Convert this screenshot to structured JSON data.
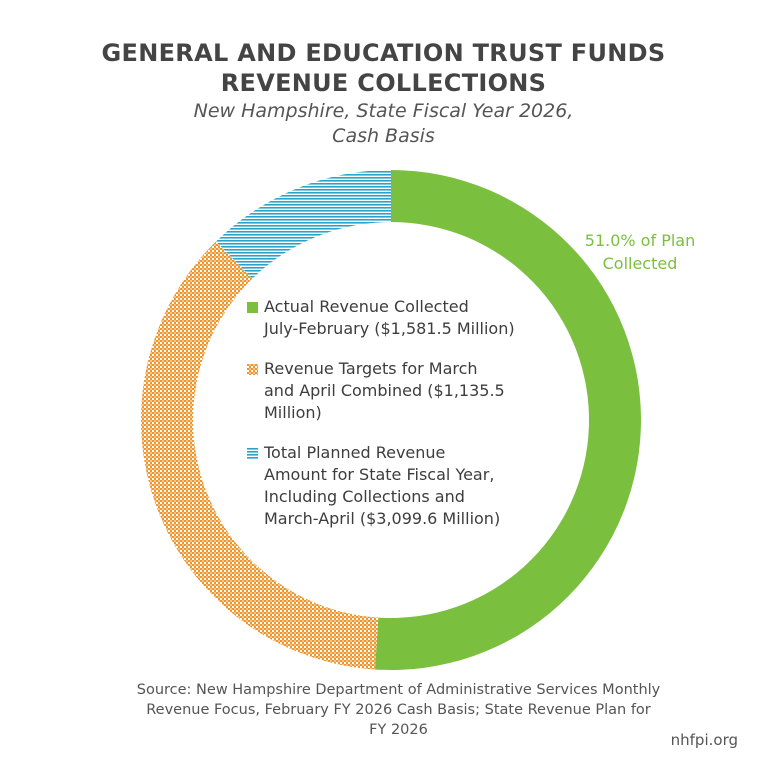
{
  "title_lines": [
    "GENERAL AND EDUCATION TRUST FUNDS",
    "REVENUE COLLECTIONS"
  ],
  "subtitle_lines": [
    "New Hampshire, State Fiscal Year 2026,",
    "Cash Basis"
  ],
  "colors": {
    "actual": "#7bbf3f",
    "targets": "#f0952d",
    "remaining": "#2aa3c8"
  },
  "chart_data": {
    "type": "pie",
    "style": "donut",
    "total": 3099.6,
    "series": [
      {
        "name": "Actual Revenue Collected July-February ($1,581.5 Million)",
        "value": 1581.5,
        "pattern": "solid"
      },
      {
        "name": "Revenue Targets for March and April Combined ($1,135.5 Million)",
        "value": 1135.5,
        "pattern": "dotted"
      },
      {
        "name": "Total Planned Revenue Amount for State Fiscal Year, Including Collections and March-April ($3,099.6 Million)",
        "value": 382.6,
        "pattern": "horizontal-lines"
      }
    ],
    "annotation": "51.0% of Plan Collected"
  },
  "callout_lines": [
    "51.0% of Plan",
    "Collected"
  ],
  "legend": [
    {
      "label": "Actual Revenue Collected\nJuly-February ($1,581.5 Million)"
    },
    {
      "label": "Revenue Targets for March\nand April Combined ($1,135.5\nMillion)"
    },
    {
      "label": "Total Planned Revenue\nAmount for State Fiscal Year,\nIncluding Collections and\nMarch-April ($3,099.6 Million)"
    }
  ],
  "source_lines": [
    "Source: New Hampshire Department of Administrative Services Monthly",
    "Revenue Focus, February FY 2026 Cash Basis; State Revenue Plan for",
    "FY 2026"
  ],
  "credit": "nhfpi.org"
}
